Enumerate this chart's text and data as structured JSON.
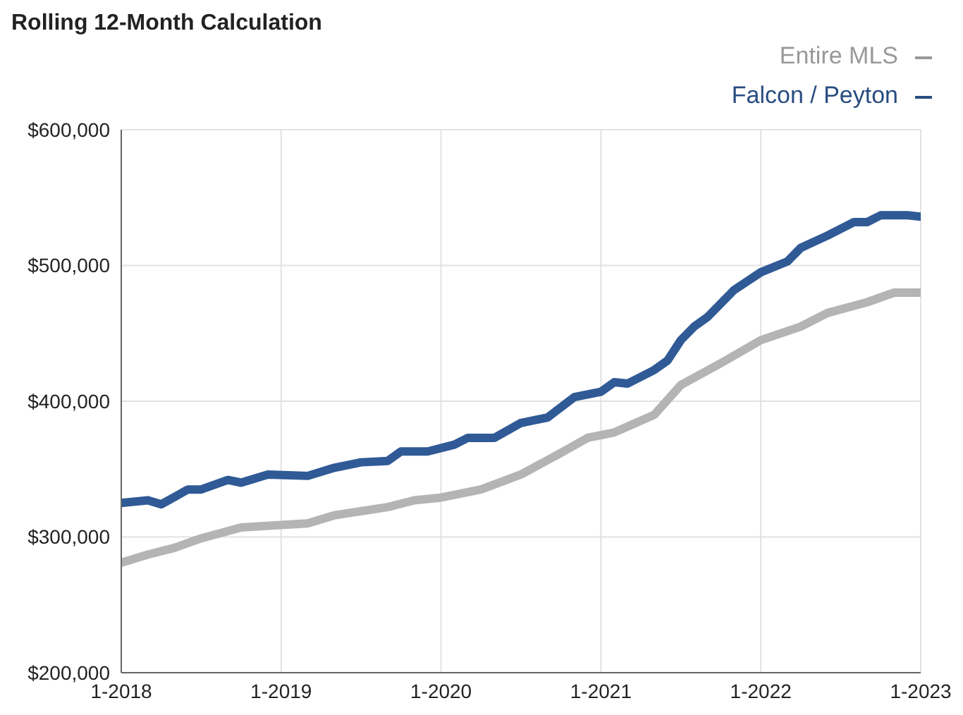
{
  "chart_data": {
    "type": "line",
    "title": "Rolling 12-Month Calculation",
    "legend": "top right",
    "grid": true,
    "marker": "none",
    "line_style": "solid",
    "xlim": [
      "2018-01",
      "2023-01"
    ],
    "xticks": [
      {
        "value": "2018-01",
        "label": "1-2018"
      },
      {
        "value": "2019-01",
        "label": "1-2019"
      },
      {
        "value": "2020-01",
        "label": "1-2020"
      },
      {
        "value": "2021-01",
        "label": "1-2021"
      },
      {
        "value": "2022-01",
        "label": "1-2022"
      },
      {
        "value": "2023-01",
        "label": "1-2023"
      }
    ],
    "ylim": [
      200000,
      600000
    ],
    "yticks": [
      {
        "value": 200000,
        "label": "$200,000"
      },
      {
        "value": 300000,
        "label": "$300,000"
      },
      {
        "value": 400000,
        "label": "$400,000"
      },
      {
        "value": 500000,
        "label": "$500,000"
      },
      {
        "value": 600000,
        "label": "$600,000"
      }
    ],
    "series": [
      {
        "name": "Entire MLS",
        "color": "#b4b4b4",
        "x": [
          "2018-01",
          "2018-03",
          "2018-05",
          "2018-07",
          "2018-10",
          "2019-03",
          "2019-05",
          "2019-09",
          "2019-11",
          "2020-01",
          "2020-04",
          "2020-07",
          "2020-10",
          "2020-12",
          "2021-02",
          "2021-05",
          "2021-07",
          "2021-10",
          "2022-01",
          "2022-04",
          "2022-06",
          "2022-09",
          "2022-11",
          "2023-01"
        ],
        "values": [
          281000,
          287000,
          292000,
          299000,
          307000,
          310000,
          316000,
          322000,
          327000,
          329000,
          335000,
          346000,
          362000,
          373000,
          377000,
          390000,
          412000,
          428000,
          445000,
          455000,
          465000,
          473000,
          480000,
          480000
        ]
      },
      {
        "name": "Falcon / Peyton",
        "color": "#2f5a96",
        "x": [
          "2018-01",
          "2018-03",
          "2018-04",
          "2018-06",
          "2018-07",
          "2018-09",
          "2018-10",
          "2018-12",
          "2019-03",
          "2019-05",
          "2019-07",
          "2019-09",
          "2019-10",
          "2019-12",
          "2020-02",
          "2020-03",
          "2020-05",
          "2020-07",
          "2020-09",
          "2020-11",
          "2021-01",
          "2021-02",
          "2021-03",
          "2021-05",
          "2021-06",
          "2021-07",
          "2021-08",
          "2021-09",
          "2021-11",
          "2022-01",
          "2022-03",
          "2022-04",
          "2022-06",
          "2022-08",
          "2022-09",
          "2022-10",
          "2022-12",
          "2023-01"
        ],
        "values": [
          325000,
          327000,
          324000,
          335000,
          335000,
          342000,
          340000,
          346000,
          345000,
          351000,
          355000,
          356000,
          363000,
          363000,
          368000,
          373000,
          373000,
          384000,
          388000,
          403000,
          407000,
          414000,
          413000,
          423000,
          430000,
          445000,
          455000,
          462000,
          482000,
          495000,
          503000,
          513000,
          522000,
          532000,
          532000,
          537000,
          537000,
          536000
        ]
      }
    ]
  }
}
